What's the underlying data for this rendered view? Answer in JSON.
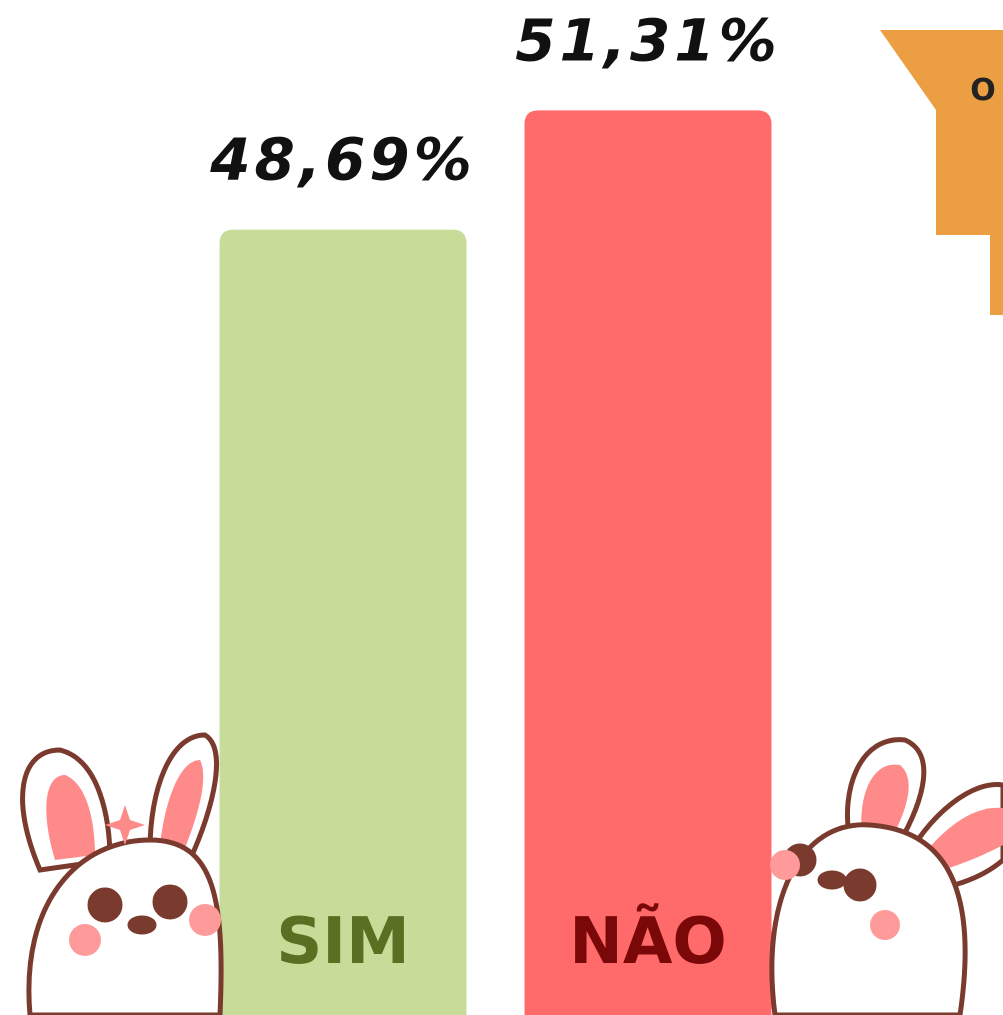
{
  "chart_data": {
    "type": "bar",
    "categories": [
      "SIM",
      "NÃO"
    ],
    "values": [
      48.69,
      51.31
    ],
    "value_labels": [
      "48,69%",
      "51,31%"
    ],
    "colors": [
      "#c8dc9a",
      "#ff6b6b"
    ],
    "label_colors": [
      "#5b6f22",
      "#7a0808"
    ],
    "annotation": "O"
  }
}
